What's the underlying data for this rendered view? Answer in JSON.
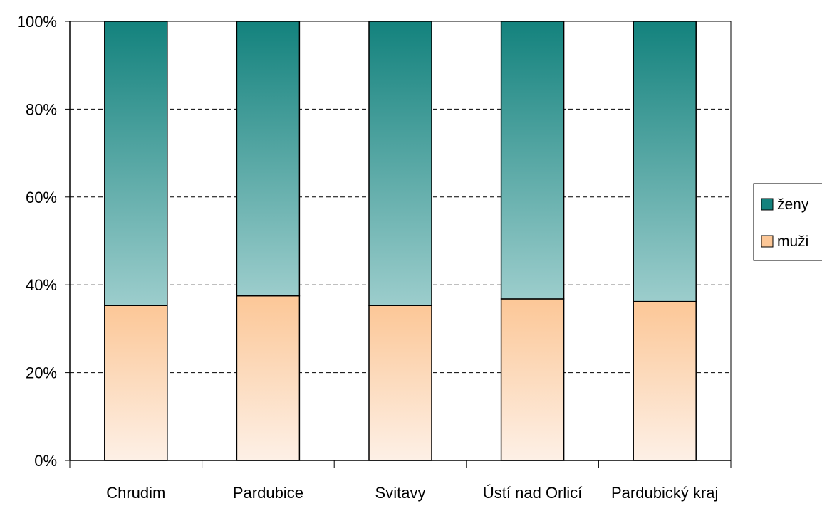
{
  "chart_data": {
    "type": "bar",
    "stacked": true,
    "percent_stacked": true,
    "categories": [
      "Chrudim",
      "Pardubice",
      "Svitavy",
      "Ústí nad Orlicí",
      "Pardubický kraj"
    ],
    "series": [
      {
        "name": "muži",
        "values": [
          35.3,
          37.5,
          35.3,
          36.8,
          36.2
        ],
        "color_light": "#fdf0e6",
        "color_dark": "#fcc797"
      },
      {
        "name": "ženy",
        "values": [
          64.7,
          62.5,
          64.7,
          63.2,
          63.8
        ],
        "color_light": "#9ccdcc",
        "color_dark": "#13827d"
      }
    ],
    "y_ticks": [
      "0%",
      "20%",
      "40%",
      "60%",
      "80%",
      "100%"
    ],
    "ylim": [
      0,
      100
    ],
    "grid": "dashed horizontal",
    "legend_position": "right",
    "legend": [
      "ženy",
      "muži"
    ]
  }
}
